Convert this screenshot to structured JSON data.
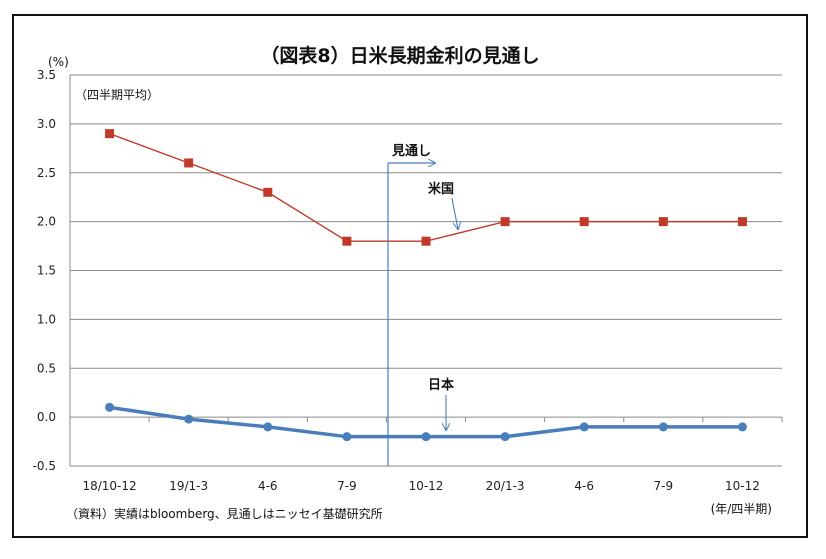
{
  "chart_data": {
    "type": "line",
    "title": "（図表8）日米長期金利の見通し",
    "ylabel": "(%)",
    "subtitle": "（四半期平均）",
    "xlabel": "(年/四半期)",
    "source": "（資料）実績はbloomberg、見通しはニッセイ基礎研究所",
    "forecast_label": "見通し",
    "categories": [
      "18/10-12",
      "19/1-3",
      "4-6",
      "7-9",
      "10-12",
      "20/1-3",
      "4-6",
      "7-9",
      "10-12"
    ],
    "ylim": [
      -0.5,
      3.5
    ],
    "yticks": [
      "3.5",
      "3.0",
      "2.5",
      "2.0",
      "1.5",
      "1.0",
      "0.5",
      "0.0",
      "-0.5"
    ],
    "grid": true,
    "series": [
      {
        "name": "米国",
        "color": "#c0392b",
        "values": [
          2.9,
          2.6,
          2.3,
          1.8,
          1.8,
          2.0,
          2.0,
          2.0,
          2.0
        ]
      },
      {
        "name": "日本",
        "color": "#4a7ebb",
        "values": [
          0.1,
          -0.02,
          -0.1,
          -0.2,
          -0.2,
          -0.2,
          -0.1,
          -0.1,
          -0.1
        ]
      }
    ]
  }
}
